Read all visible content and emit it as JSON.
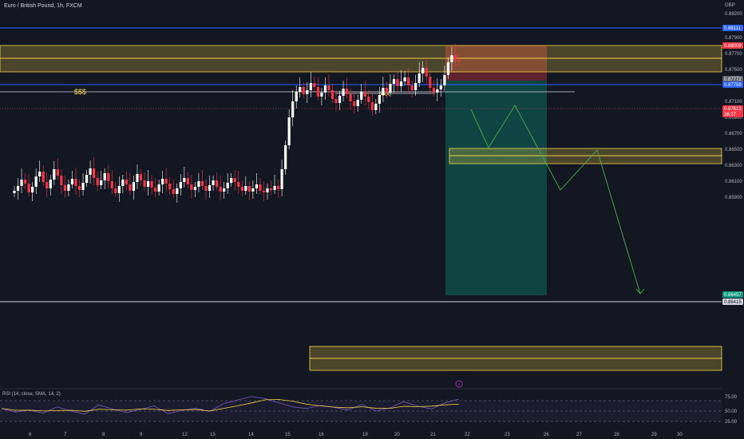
{
  "header": {
    "symbol_title": "Euro / British Pound, 1h, FXCM",
    "currency": "GBP"
  },
  "rsi": {
    "label": "RSI (14, close, SMA, 14, 2)",
    "ticks": [
      "75.00",
      "50.00",
      "25.00"
    ],
    "values": [
      55,
      48,
      52,
      46,
      58,
      50,
      44,
      62,
      54,
      47,
      53,
      60,
      45,
      51,
      56,
      49,
      64,
      71,
      78,
      74,
      66,
      58,
      55,
      61,
      57,
      52,
      63,
      50,
      56,
      68,
      60,
      54,
      66,
      73
    ]
  },
  "badges": [
    {
      "text": "0.88111",
      "color": "#2962ff",
      "text_color": "#ffffff"
    },
    {
      "text": "0.88009",
      "color": "#f23645",
      "text_color": "#ffffff"
    },
    {
      "text": "0.87772",
      "color": "#5d606b",
      "text_color": "#ffffff"
    },
    {
      "text": "0.87759",
      "color": "#2962ff",
      "text_color": "#ffffff"
    },
    {
      "text": "0.87613",
      "color": "#f23645",
      "text_color": "#ffffff"
    },
    {
      "text": "36:27",
      "color": "#f23645",
      "text_color": "#ffffff"
    },
    {
      "text": "0.86457",
      "color": "#089981",
      "text_color": "#ffffff"
    },
    {
      "text": "0.86415",
      "color": "#d1d4dc",
      "text_color": "#131722"
    }
  ],
  "annotations": {
    "dollars": "$$$",
    "xxx": "xxx"
  },
  "chart_data": {
    "type": "candlestick",
    "symbol": "Euro / British Pound",
    "timeframe": "1h",
    "source": "FXCM",
    "currency": "GBP",
    "x_ticks": [
      "6",
      "7",
      "8",
      "9",
      "12",
      "13",
      "14",
      "15",
      "16",
      "19",
      "20",
      "21",
      "22",
      "23",
      "26",
      "27",
      "28",
      "29",
      "30"
    ],
    "y_ticks": [
      "0.88200",
      "0.87900",
      "0.87700",
      "0.87500",
      "0.87300",
      "0.87100",
      "0.86900",
      "0.86700",
      "0.86500",
      "0.86300",
      "0.86100",
      "0.85900"
    ],
    "y_tick_values": [
      0.882,
      0.879,
      0.877,
      0.875,
      0.873,
      0.871,
      0.869,
      0.867,
      0.865,
      0.863,
      0.861,
      0.859
    ],
    "ylim": [
      0.8587,
      0.8826
    ],
    "candles_close": [
      0.8598,
      0.8604,
      0.8612,
      0.8607,
      0.8596,
      0.8603,
      0.8616,
      0.8622,
      0.8609,
      0.8601,
      0.8612,
      0.8625,
      0.8617,
      0.8605,
      0.8598,
      0.8606,
      0.8613,
      0.8604,
      0.8599,
      0.8608,
      0.8618,
      0.8626,
      0.8614,
      0.8605,
      0.8611,
      0.862,
      0.861,
      0.8601,
      0.8595,
      0.8604,
      0.8612,
      0.8606,
      0.8598,
      0.8609,
      0.8619,
      0.8611,
      0.8603,
      0.861,
      0.8602,
      0.8597,
      0.8606,
      0.8613,
      0.8607,
      0.86,
      0.8594,
      0.8601,
      0.8609,
      0.8614,
      0.8606,
      0.8599,
      0.8603,
      0.861,
      0.8604,
      0.8598,
      0.8605,
      0.8611,
      0.8603,
      0.8597,
      0.8601,
      0.8608,
      0.8614,
      0.8609,
      0.8603,
      0.8598,
      0.8604,
      0.8597,
      0.8601,
      0.8606,
      0.8598,
      0.8596,
      0.8601,
      0.8599,
      0.8604,
      0.86,
      0.8625,
      0.8655,
      0.869,
      0.871,
      0.8722,
      0.8728,
      0.8719,
      0.8724,
      0.8733,
      0.8728,
      0.8716,
      0.8721,
      0.873,
      0.8724,
      0.8713,
      0.8708,
      0.8717,
      0.8726,
      0.8719,
      0.871,
      0.8704,
      0.8712,
      0.8722,
      0.8716,
      0.8709,
      0.8699,
      0.8707,
      0.8718,
      0.8727,
      0.8721,
      0.8732,
      0.8738,
      0.8729,
      0.8735,
      0.874,
      0.873,
      0.8724,
      0.8733,
      0.8745,
      0.8752,
      0.8741,
      0.8727,
      0.8721,
      0.8725,
      0.873,
      0.8743,
      0.8759,
      0.8768,
      0.8762,
      0.8761
    ],
    "zones": [
      {
        "from": 0.8791,
        "to": 0.8803
      },
      {
        "from": 0.8781,
        "to": 0.8791
      },
      {
        "from": 0.8729,
        "to": 0.8735
      },
      {
        "from": 0.8724,
        "to": 0.8729
      },
      {
        "from": 0.8607,
        "to": 0.8613
      },
      {
        "from": 0.8599,
        "to": 0.8604
      }
    ],
    "horizontal_lines": [
      {
        "price": 0.88111,
        "color": "#2962ff"
      },
      {
        "price": 0.87759,
        "color": "#2962ff"
      },
      {
        "price": 0.86415,
        "color": "#d1d4dc"
      },
      {
        "price": 0.87613,
        "color": "#f23645"
      }
    ],
    "position": {
      "entry": 0.87613,
      "stop": 0.88009,
      "target": 0.86457
    },
    "colors": {
      "up": "#ffffff",
      "down": "#f23645",
      "projection": "#4caf50",
      "zone": "#f5d547"
    }
  }
}
